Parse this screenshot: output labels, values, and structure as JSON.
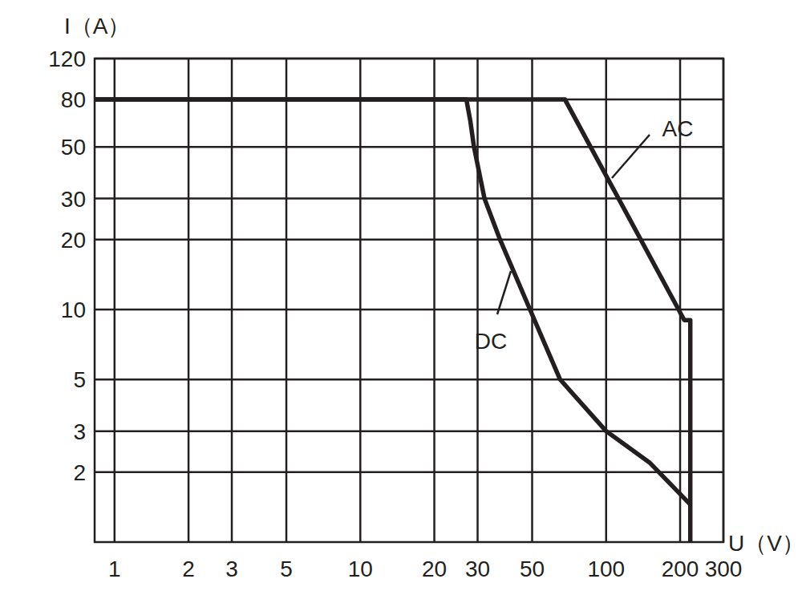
{
  "chart_data": {
    "type": "line",
    "x_label": "U（V）",
    "y_label": "I（A）",
    "log": true,
    "grid": true,
    "xlim": [
      0.83,
      300
    ],
    "ylim": [
      1,
      120
    ],
    "xticks": [
      1,
      2,
      3,
      5,
      10,
      20,
      30,
      50,
      100,
      200,
      300
    ],
    "yticks": [
      2,
      3,
      5,
      10,
      20,
      30,
      50,
      80,
      120
    ],
    "color": "#231f20",
    "series": [
      {
        "name": "AC",
        "x": [
          0.83,
          68,
          208,
          220,
          220
        ],
        "values": [
          80,
          80,
          9,
          9,
          1
        ]
      },
      {
        "name": "DC",
        "x": [
          0.83,
          27,
          28,
          29,
          32,
          37,
          49,
          65,
          100,
          150,
          220
        ],
        "values": [
          80,
          80,
          65,
          50,
          30,
          20,
          10,
          5,
          3,
          2.2,
          1.45
        ]
      }
    ]
  }
}
